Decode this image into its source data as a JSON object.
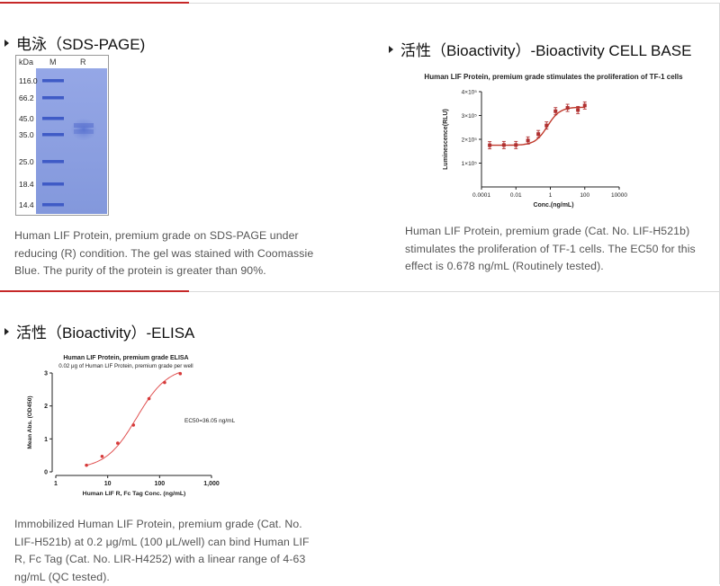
{
  "sds_page": {
    "heading": "电泳（SDS-PAGE)",
    "gel": {
      "columns": [
        "kDa",
        "M",
        "R"
      ],
      "markers": [
        "116.0",
        "66.2",
        "45.0",
        "35.0",
        "25.0",
        "18.4",
        "14.4"
      ]
    },
    "description": "Human LIF Protein, premium grade on SDS-PAGE under reducing (R) condition. The gel was stained with Coomassie Blue. The purity of the protein is greater than 90%."
  },
  "cell_base": {
    "heading": "活性（Bioactivity）-Bioactivity CELL BASE",
    "description": "Human LIF Protein, premium grade (Cat. No. LIF-H521b) stimulates the proliferation of TF-1 cells. The EC50 for this effect is 0.678 ng/mL (Routinely tested)."
  },
  "elisa": {
    "heading": "活性（Bioactivity）-ELISA",
    "description": "Immobilized Human LIF Protein, premium grade (Cat. No. LIF-H521b) at 0.2 μg/mL (100 μL/well) can bind Human LIF R, Fc Tag (Cat. No. LIR-H4252) with a linear range of 4-63 ng/mL (QC tested)."
  },
  "colors": {
    "accent": "#c62828",
    "gel_blue": "#8a9ee0",
    "band": "#3f5bc6"
  },
  "chart_data": [
    {
      "type": "line",
      "title": "Human LIF Protein, premium grade stimulates the proliferation of TF-1 cells",
      "xlabel": "Conc.(ng/mL)",
      "ylabel": "Luminescence(RLU)",
      "x_scale": "log",
      "xlim": [
        0.0001,
        10000
      ],
      "ylim": [
        0,
        400000
      ],
      "x_ticks": [
        "0.0001",
        "0.01",
        "1",
        "100",
        "10000"
      ],
      "y_ticks": [
        "1×10⁵",
        "2×10⁵",
        "3×10⁵",
        "4×10⁵"
      ],
      "series": [
        {
          "x": [
            0.0003,
            0.002,
            0.01,
            0.05,
            0.2,
            0.6,
            2,
            10,
            40,
            100
          ],
          "y": [
            175000,
            176000,
            176000,
            195000,
            222000,
            258000,
            318000,
            332000,
            323000,
            342000
          ]
        }
      ]
    },
    {
      "type": "line",
      "title": "Human LIF Protein, premium grade ELISA",
      "subtitle": "0.02 μg of Human LIF Protein, premium grade per well",
      "xlabel": "Human LIF R, Fc Tag Conc. (ng/mL)",
      "ylabel": "Mean Abs. (OD450)",
      "x_scale": "log",
      "xlim": [
        1,
        1000
      ],
      "ylim": [
        0,
        3
      ],
      "x_ticks": [
        "1",
        "10",
        "100",
        "1,000"
      ],
      "y_ticks": [
        "0",
        "1",
        "2",
        "3"
      ],
      "annotation": "EC50=36.05 ng/mL",
      "series": [
        {
          "x": [
            3.9,
            7.8,
            15.6,
            31.3,
            62.5,
            125,
            250
          ],
          "y": [
            0.2,
            0.47,
            0.87,
            1.42,
            2.22,
            2.71,
            2.98
          ]
        }
      ]
    }
  ]
}
